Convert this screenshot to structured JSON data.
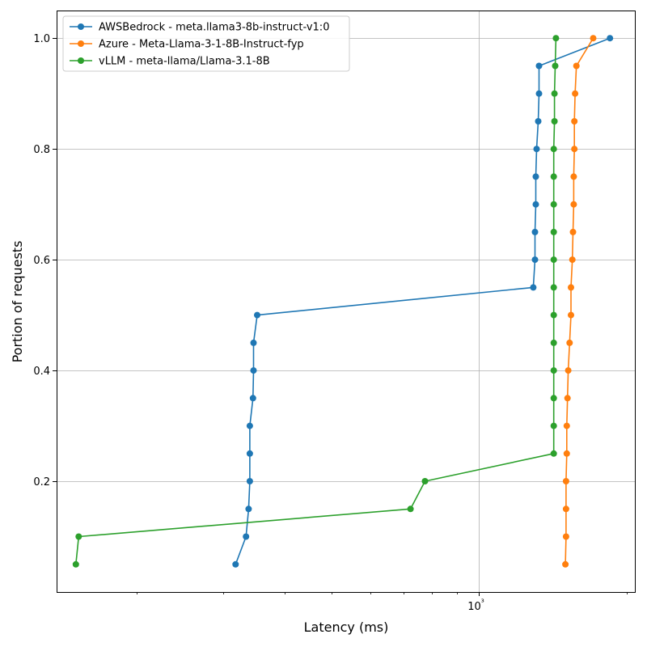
{
  "chart_data": {
    "type": "line",
    "xlabel": "Latency (ms)",
    "ylabel": "Portion of requests",
    "xscale": "log",
    "xlim": [
      137,
      2080
    ],
    "ylim": [
      0.0,
      1.05
    ],
    "x_major_ticks": [
      {
        "value": 1000,
        "label": "10³"
      }
    ],
    "x_minor_ticks": [
      200,
      300,
      400,
      500,
      600,
      700,
      800,
      900,
      2000
    ],
    "y_ticks": [
      {
        "value": 0.2,
        "label": "0.2"
      },
      {
        "value": 0.4,
        "label": "0.4"
      },
      {
        "value": 0.6,
        "label": "0.6"
      },
      {
        "value": 0.8,
        "label": "0.8"
      },
      {
        "value": 1.0,
        "label": "1.0"
      }
    ],
    "grid": true,
    "legend_position": "upper-left",
    "series": [
      {
        "name": "AWSBedrock - meta.llama3-8b-instruct-v1:0",
        "color": "#1f77b4",
        "points": [
          [
            318,
            0.05
          ],
          [
            334,
            0.1
          ],
          [
            338,
            0.15
          ],
          [
            340,
            0.2
          ],
          [
            340,
            0.25
          ],
          [
            340,
            0.3
          ],
          [
            345,
            0.35
          ],
          [
            346,
            0.4
          ],
          [
            346,
            0.45
          ],
          [
            352,
            0.5
          ],
          [
            1290,
            0.55
          ],
          [
            1300,
            0.6
          ],
          [
            1300,
            0.65
          ],
          [
            1305,
            0.7
          ],
          [
            1305,
            0.75
          ],
          [
            1310,
            0.8
          ],
          [
            1320,
            0.85
          ],
          [
            1325,
            0.9
          ],
          [
            1325,
            0.95
          ],
          [
            1850,
            1.0
          ]
        ]
      },
      {
        "name": "Azure - Meta-Llama-3-1-8B-Instruct-fyp",
        "color": "#ff7f0e",
        "points": [
          [
            1500,
            0.05
          ],
          [
            1505,
            0.1
          ],
          [
            1505,
            0.15
          ],
          [
            1505,
            0.2
          ],
          [
            1510,
            0.25
          ],
          [
            1510,
            0.3
          ],
          [
            1515,
            0.35
          ],
          [
            1520,
            0.4
          ],
          [
            1530,
            0.45
          ],
          [
            1540,
            0.5
          ],
          [
            1540,
            0.55
          ],
          [
            1550,
            0.6
          ],
          [
            1555,
            0.65
          ],
          [
            1560,
            0.7
          ],
          [
            1560,
            0.75
          ],
          [
            1565,
            0.8
          ],
          [
            1565,
            0.85
          ],
          [
            1570,
            0.9
          ],
          [
            1580,
            0.95
          ],
          [
            1710,
            1.0
          ]
        ]
      },
      {
        "name": "vLLM - meta-llama/Llama-3.1-8B",
        "color": "#2ca02c",
        "points": [
          [
            150,
            0.05
          ],
          [
            152,
            0.1
          ],
          [
            724,
            0.15
          ],
          [
            775,
            0.2
          ],
          [
            1420,
            0.25
          ],
          [
            1420,
            0.3
          ],
          [
            1420,
            0.35
          ],
          [
            1420,
            0.4
          ],
          [
            1420,
            0.45
          ],
          [
            1420,
            0.5
          ],
          [
            1420,
            0.55
          ],
          [
            1420,
            0.6
          ],
          [
            1420,
            0.65
          ],
          [
            1420,
            0.7
          ],
          [
            1420,
            0.75
          ],
          [
            1420,
            0.8
          ],
          [
            1425,
            0.85
          ],
          [
            1425,
            0.9
          ],
          [
            1430,
            0.95
          ],
          [
            1435,
            1.0
          ]
        ]
      }
    ]
  }
}
